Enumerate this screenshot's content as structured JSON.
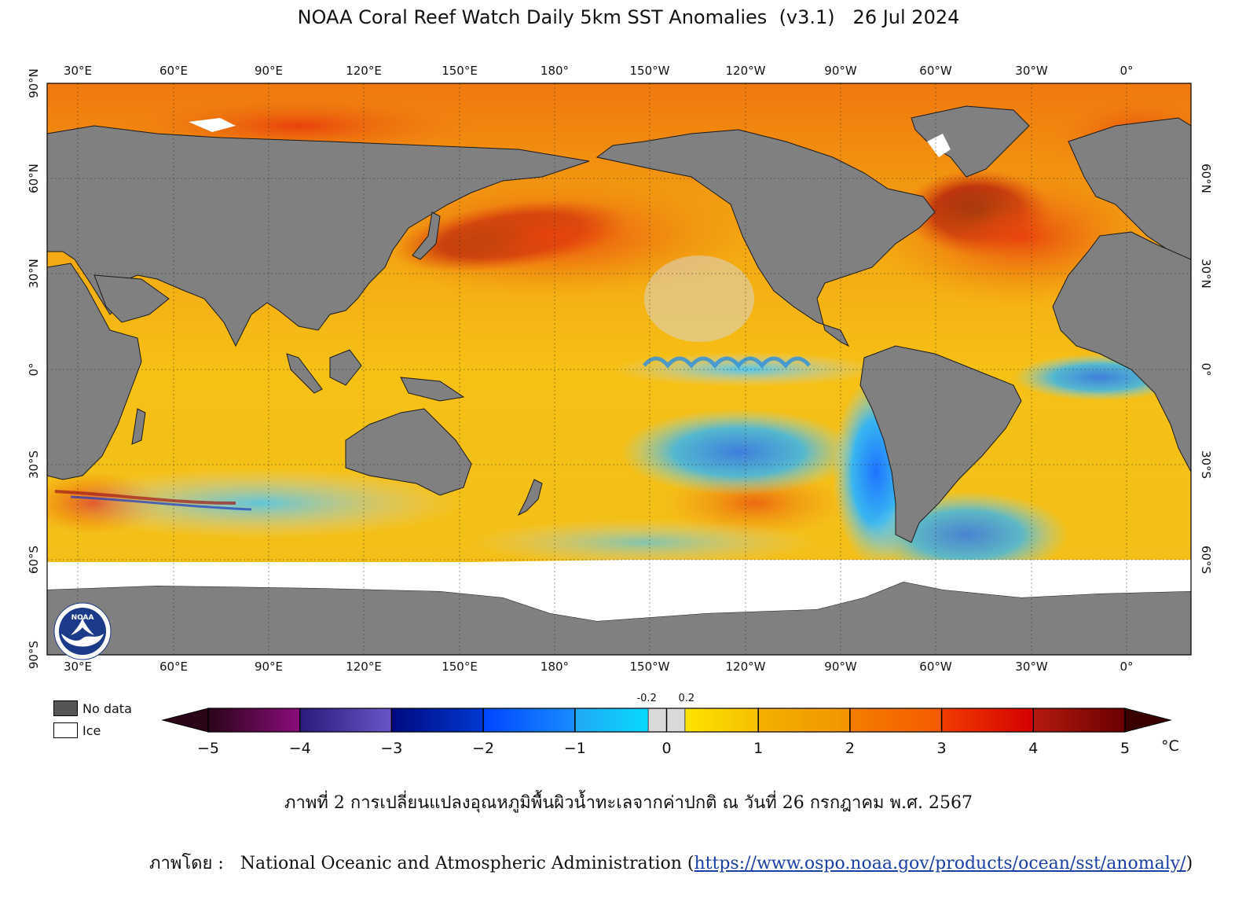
{
  "title": "NOAA Coral Reef Watch Daily 5km SST Anomalies  (v3.1)   26 Jul 2024",
  "map": {
    "lon_labels": [
      "30°E",
      "60°E",
      "90°E",
      "120°E",
      "150°E",
      "180°",
      "150°W",
      "120°W",
      "90°W",
      "60°W",
      "30°W",
      "0°"
    ],
    "lat_labels": [
      "90°N",
      "60°N",
      "30°N",
      "0°",
      "30°S",
      "60°S",
      "90°S"
    ],
    "right_lat_labels": [
      "60°N",
      "30°N",
      "0°",
      "30°S",
      "60°S"
    ]
  },
  "legend": {
    "no_data": "No data",
    "ice": "Ice",
    "no_data_color": "#555555",
    "ice_color": "#ffffff"
  },
  "colorbar": {
    "ticks": [
      "−5",
      "−4",
      "−3",
      "−2",
      "−1",
      "0",
      "1",
      "2",
      "3",
      "4",
      "5"
    ],
    "small_ticks": [
      "-0.2",
      "0.2"
    ],
    "unit": "°C"
  },
  "logo": {
    "text": "NOAA",
    "icon": "noaa-logo-icon"
  },
  "caption": "ภาพที่ 2 การเปลี่ยนแปลงอุณหภูมิพื้นผิวน้ำทะเลจากค่าปกติ ณ วันที่ 26 กรกฎาคม พ.ศ. 2567",
  "credit": {
    "prefix": "ภาพโดย :   National Oceanic and Atmospheric Administration (",
    "link": "https://www.ospo.noaa.gov/products/ocean/sst/anomaly/",
    "suffix": ")"
  }
}
